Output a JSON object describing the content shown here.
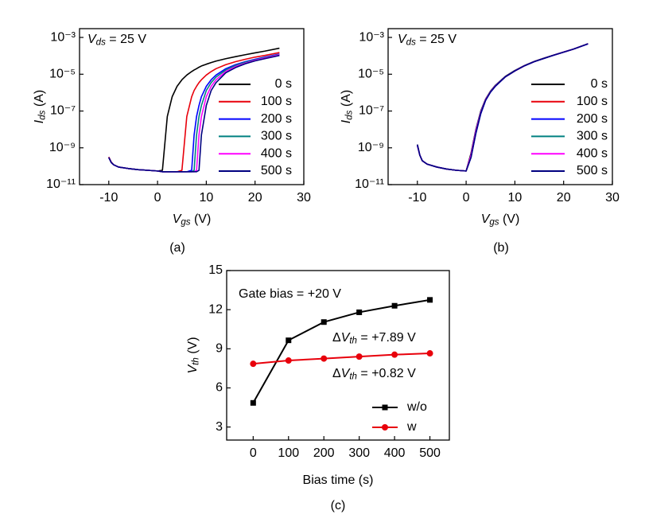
{
  "chart_data": [
    {
      "type": "line",
      "y_log": true,
      "caption": "(a)",
      "annotations": [
        {
          "text": [
            "V",
            "ds",
            " = 25 V"
          ],
          "color": "#000000"
        }
      ],
      "x_label": [
        "V",
        "gs",
        " (V)"
      ],
      "y_label": [
        "I",
        "ds",
        " (A)"
      ],
      "x": [
        -10,
        -9.5,
        -9,
        -8,
        -6,
        -4,
        -2,
        0,
        1,
        2,
        3,
        4,
        5,
        6,
        7,
        7.5,
        8,
        8.5,
        9,
        10,
        11,
        12,
        14,
        16,
        18,
        20,
        22,
        25
      ],
      "xlim": [
        -16,
        30
      ],
      "xticks": [
        -10,
        0,
        10,
        20,
        30
      ],
      "ylim": [
        1e-11,
        0.003
      ],
      "yticks": [
        {
          "value": 1e-11,
          "label": "10⁻¹¹"
        },
        {
          "value": 1e-09,
          "label": "10⁻⁹"
        },
        {
          "value": 1e-07,
          "label": "10⁻⁷"
        },
        {
          "value": 1e-05,
          "label": "10⁻⁵"
        },
        {
          "value": 0.001,
          "label": "10⁻³"
        }
      ],
      "legend": "lower right",
      "series": [
        {
          "name": "0 s",
          "color": "#000000",
          "values": [
            3e-10,
            1.6e-10,
            1.2e-10,
            9e-11,
            7.5e-11,
            6.5e-11,
            6e-11,
            5.5e-11,
            6e-11,
            5e-08,
            6e-07,
            2.2e-06,
            5e-06,
            9e-06,
            1.4e-05,
            1.7e-05,
            2e-05,
            2.4e-05,
            2.8e-05,
            3.5e-05,
            4.3e-05,
            5.2e-05,
            7e-05,
            9e-05,
            0.000115,
            0.000145,
            0.00018,
            0.00026
          ]
        },
        {
          "name": "100 s",
          "color": "#e8000b",
          "values": [
            3.2e-10,
            1.7e-10,
            1.2e-10,
            9e-11,
            7.5e-11,
            6.5e-11,
            6e-11,
            5.5e-11,
            5e-11,
            5e-11,
            5e-11,
            5e-11,
            6e-11,
            5e-08,
            6e-07,
            1.3e-06,
            2.2e-06,
            3.5e-06,
            5e-06,
            9e-06,
            1.4e-05,
            2e-05,
            3.3e-05,
            4.8e-05,
            6.5e-05,
            8.5e-05,
            0.000105,
            0.00015
          ]
        },
        {
          "name": "200 s",
          "color": "#0000ff",
          "values": [
            3e-10,
            1.6e-10,
            1.2e-10,
            9e-11,
            7.5e-11,
            6.5e-11,
            6e-11,
            5.5e-11,
            5e-11,
            5e-11,
            5e-11,
            5e-11,
            5e-11,
            5e-11,
            6e-11,
            5e-09,
            5e-08,
            2e-07,
            6e-07,
            2.2e-06,
            5e-06,
            9e-06,
            2e-05,
            3.3e-05,
            4.8e-05,
            6.5e-05,
            8.5e-05,
            0.000125
          ]
        },
        {
          "name": "300 s",
          "color": "#008080",
          "values": [
            3e-10,
            1.6e-10,
            1.2e-10,
            9e-11,
            7.5e-11,
            6.5e-11,
            6e-11,
            5.5e-11,
            5e-11,
            5e-11,
            5e-11,
            5e-11,
            5e-11,
            5e-11,
            5e-11,
            6e-11,
            5e-09,
            5e-08,
            2e-07,
            1.3e-06,
            3.5e-06,
            7e-06,
            1.7e-05,
            3e-05,
            4.5e-05,
            6e-05,
            8e-05,
            0.00012
          ]
        },
        {
          "name": "400 s",
          "color": "#ff00ff",
          "values": [
            3e-10,
            1.6e-10,
            1.2e-10,
            9e-11,
            7.5e-11,
            6.5e-11,
            6e-11,
            5.5e-11,
            5e-11,
            5e-11,
            5e-11,
            5e-11,
            5e-11,
            5e-11,
            5e-11,
            5e-11,
            6e-11,
            5e-09,
            5e-08,
            6e-07,
            2.2e-06,
            5e-06,
            1.4e-05,
            2.6e-05,
            4e-05,
            5.7e-05,
            7.5e-05,
            0.000115
          ]
        },
        {
          "name": "500 s",
          "color": "#000080",
          "values": [
            3e-10,
            1.6e-10,
            1.2e-10,
            9e-11,
            7.5e-11,
            6.5e-11,
            6e-11,
            5.5e-11,
            5e-11,
            5e-11,
            5e-11,
            5e-11,
            5e-11,
            5e-11,
            5e-11,
            5e-11,
            5e-11,
            6e-11,
            5e-09,
            2e-07,
            1.3e-06,
            3.5e-06,
            1.2e-05,
            2.3e-05,
            3.7e-05,
            5.3e-05,
            7e-05,
            0.000105
          ]
        }
      ]
    },
    {
      "type": "line",
      "y_log": true,
      "caption": "(b)",
      "annotations": [
        {
          "text": [
            "V",
            "ds",
            " = 25 V"
          ],
          "color": "#000000"
        }
      ],
      "x_label": [
        "V",
        "gs",
        " (V)"
      ],
      "y_label": [
        "I",
        "ds",
        " (A)"
      ],
      "x": [
        -10,
        -9.5,
        -9,
        -8,
        -6,
        -4,
        -2,
        0,
        1,
        2,
        3,
        4,
        5,
        6,
        8,
        10,
        12,
        14,
        16,
        18,
        20,
        22,
        25
      ],
      "xlim": [
        -16,
        30
      ],
      "xticks": [
        -10,
        0,
        10,
        20,
        30
      ],
      "ylim": [
        1e-11,
        0.003
      ],
      "yticks": [
        {
          "value": 1e-11,
          "label": "10⁻¹¹"
        },
        {
          "value": 1e-09,
          "label": "10⁻⁹"
        },
        {
          "value": 1e-07,
          "label": "10⁻⁷"
        },
        {
          "value": 1e-05,
          "label": "10⁻⁵"
        },
        {
          "value": 0.001,
          "label": "10⁻³"
        }
      ],
      "legend": "lower right",
      "series": [
        {
          "name": "0 s",
          "color": "#000000",
          "values": [
            1.5e-09,
            4e-10,
            2e-10,
            1.3e-10,
            9e-11,
            7e-11,
            6e-11,
            5.5e-11,
            5e-10,
            1e-08,
            1e-07,
            4.5e-07,
            1.2e-06,
            2.5e-06,
            7.5e-06,
            1.6e-05,
            3e-05,
            5e-05,
            7.5e-05,
            0.00011,
            0.00016,
            0.00023,
            0.00045
          ]
        },
        {
          "name": "100 s",
          "color": "#e8000b",
          "values": [
            1.4e-09,
            4e-10,
            2e-10,
            1.3e-10,
            9e-11,
            7e-11,
            6e-11,
            5.5e-11,
            3.5e-10,
            7e-09,
            8e-08,
            4e-07,
            1.1e-06,
            2.3e-06,
            7e-06,
            1.5e-05,
            2.9e-05,
            4.9e-05,
            7.4e-05,
            0.00011,
            0.00016,
            0.00023,
            0.00045
          ]
        },
        {
          "name": "200 s",
          "color": "#0000ff",
          "values": [
            1.3e-09,
            4e-10,
            2e-10,
            1.3e-10,
            9e-11,
            7e-11,
            6e-11,
            5.5e-11,
            3e-10,
            6e-09,
            7e-08,
            3.8e-07,
            1.05e-06,
            2.2e-06,
            7e-06,
            1.5e-05,
            2.9e-05,
            4.8e-05,
            7.3e-05,
            0.000108,
            0.000158,
            0.00023,
            0.00044
          ]
        },
        {
          "name": "300 s",
          "color": "#008080",
          "values": [
            1.4e-09,
            4e-10,
            2e-10,
            1.3e-10,
            9e-11,
            7e-11,
            6e-11,
            5.5e-11,
            4e-10,
            9e-09,
            9e-08,
            4.3e-07,
            1.15e-06,
            2.4e-06,
            7.3e-06,
            1.55e-05,
            2.95e-05,
            4.9e-05,
            7.4e-05,
            0.00011,
            0.00016,
            0.00023,
            0.00045
          ]
        },
        {
          "name": "400 s",
          "color": "#ff00ff",
          "values": [
            1.4e-09,
            4e-10,
            2e-10,
            1.3e-10,
            9e-11,
            7e-11,
            6e-11,
            5.5e-11,
            4e-10,
            8.5e-09,
            8.5e-08,
            4.2e-07,
            1.12e-06,
            2.35e-06,
            7.2e-06,
            1.53e-05,
            2.92e-05,
            4.88e-05,
            7.35e-05,
            0.00011,
            0.00016,
            0.00023,
            0.00045
          ]
        },
        {
          "name": "500 s",
          "color": "#000080",
          "values": [
            1.5e-09,
            4e-10,
            2e-10,
            1.3e-10,
            9e-11,
            7e-11,
            6e-11,
            5.5e-11,
            3e-10,
            6.5e-09,
            7.5e-08,
            3.9e-07,
            1.08e-06,
            2.25e-06,
            7.1e-06,
            1.52e-05,
            2.9e-05,
            4.85e-05,
            7.3e-05,
            0.000109,
            0.000159,
            0.00023,
            0.00045
          ]
        }
      ]
    },
    {
      "type": "line",
      "y_log": false,
      "caption": "(c)",
      "annotations": [
        {
          "text": "Gate bias = +20 V",
          "color": "#000000"
        },
        {
          "text": [
            "Δ",
            "V",
            "th",
            " = +7.89 V"
          ],
          "color": "#000000"
        },
        {
          "text": [
            "Δ",
            "V",
            "th",
            " = +0.82 V"
          ],
          "color": "#e8000b"
        }
      ],
      "x_label": "Bias time (s)",
      "y_label": [
        "V",
        "th",
        " (V)"
      ],
      "x": [
        0,
        100,
        200,
        300,
        400,
        500
      ],
      "xlim": [
        -75,
        555
      ],
      "xticks": [
        0,
        100,
        200,
        300,
        400,
        500
      ],
      "ylim": [
        2,
        15
      ],
      "yticks": [
        3,
        6,
        9,
        12,
        15
      ],
      "legend": "lower right",
      "series": [
        {
          "name": "w/o",
          "color": "#000000",
          "marker": "square",
          "values": [
            4.85,
            9.65,
            11.05,
            11.8,
            12.3,
            12.75
          ]
        },
        {
          "name": "w",
          "color": "#e8000b",
          "marker": "circle",
          "values": [
            7.85,
            8.1,
            8.25,
            8.4,
            8.55,
            8.65
          ]
        }
      ]
    }
  ]
}
